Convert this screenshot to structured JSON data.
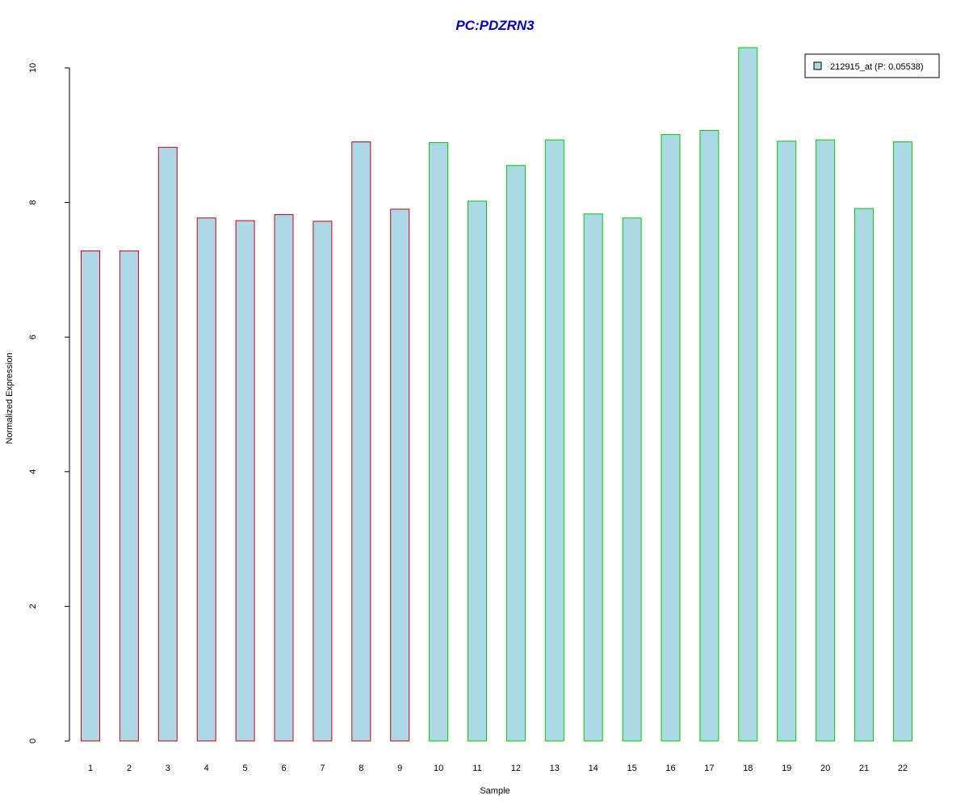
{
  "chart_data": {
    "type": "bar",
    "title": "PC:PDZRN3",
    "title_color": "#0000cc",
    "xlabel": "Sample",
    "ylabel": "Normalized Expression",
    "categories": [
      "1",
      "2",
      "3",
      "4",
      "5",
      "6",
      "7",
      "8",
      "9",
      "10",
      "11",
      "12",
      "13",
      "14",
      "15",
      "16",
      "17",
      "18",
      "19",
      "20",
      "21",
      "22"
    ],
    "values": [
      7.28,
      7.28,
      8.82,
      7.77,
      7.73,
      7.82,
      7.72,
      8.9,
      7.9,
      8.89,
      8.02,
      8.55,
      8.93,
      7.83,
      7.77,
      9.01,
      9.07,
      10.3,
      8.91,
      8.93,
      7.91,
      8.9
    ],
    "groups": [
      1,
      1,
      1,
      1,
      1,
      1,
      1,
      1,
      1,
      2,
      2,
      2,
      2,
      2,
      2,
      2,
      2,
      2,
      2,
      2,
      2,
      2
    ],
    "group_colors": {
      "1": "#cc0000",
      "2": "#00cc00"
    },
    "bar_fill": "#add8e6",
    "ylim": [
      0,
      10.3
    ],
    "yticks": [
      0,
      2,
      4,
      6,
      8,
      10
    ],
    "legend": {
      "entries": [
        {
          "name": "212915_at (P: 0.05538)",
          "color": "#add8e6"
        }
      ],
      "placement": "top-right"
    },
    "grid": false
  }
}
